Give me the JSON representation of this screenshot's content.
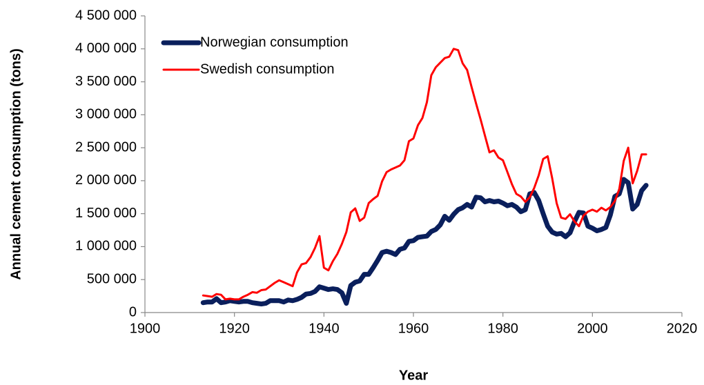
{
  "chart_data": {
    "type": "line",
    "x_label": "Year",
    "y_label": "Annual cement consumption (tons)",
    "legend": "top-left",
    "x": [
      1913,
      1914,
      1915,
      1916,
      1917,
      1918,
      1919,
      1920,
      1921,
      1922,
      1923,
      1924,
      1925,
      1926,
      1927,
      1928,
      1929,
      1930,
      1931,
      1932,
      1933,
      1934,
      1935,
      1936,
      1937,
      1938,
      1939,
      1940,
      1941,
      1942,
      1943,
      1944,
      1945,
      1946,
      1947,
      1948,
      1949,
      1950,
      1951,
      1952,
      1953,
      1954,
      1955,
      1956,
      1957,
      1958,
      1959,
      1960,
      1961,
      1962,
      1963,
      1964,
      1965,
      1966,
      1967,
      1968,
      1969,
      1970,
      1971,
      1972,
      1973,
      1974,
      1975,
      1976,
      1977,
      1978,
      1979,
      1980,
      1981,
      1982,
      1983,
      1984,
      1985,
      1986,
      1987,
      1988,
      1989,
      1990,
      1991,
      1992,
      1993,
      1994,
      1995,
      1996,
      1997,
      1998,
      1999,
      2000,
      2001,
      2002,
      2003,
      2004,
      2005,
      2006,
      2007,
      2008,
      2009,
      2010,
      2011,
      2012
    ],
    "series": [
      {
        "name": "Norwegian consumption",
        "color": "#0a1f5c",
        "values": [
          150000,
          160000,
          160000,
          210000,
          150000,
          160000,
          180000,
          170000,
          160000,
          170000,
          170000,
          150000,
          140000,
          130000,
          140000,
          180000,
          180000,
          180000,
          160000,
          190000,
          180000,
          200000,
          230000,
          280000,
          290000,
          320000,
          390000,
          370000,
          350000,
          360000,
          350000,
          300000,
          140000,
          410000,
          460000,
          480000,
          580000,
          580000,
          680000,
          790000,
          910000,
          930000,
          910000,
          880000,
          960000,
          980000,
          1080000,
          1090000,
          1140000,
          1150000,
          1160000,
          1230000,
          1260000,
          1330000,
          1460000,
          1400000,
          1490000,
          1560000,
          1590000,
          1640000,
          1600000,
          1750000,
          1740000,
          1680000,
          1700000,
          1680000,
          1690000,
          1660000,
          1620000,
          1640000,
          1600000,
          1530000,
          1560000,
          1800000,
          1820000,
          1700000,
          1500000,
          1310000,
          1220000,
          1190000,
          1200000,
          1150000,
          1210000,
          1380000,
          1520000,
          1510000,
          1310000,
          1280000,
          1240000,
          1260000,
          1290000,
          1480000,
          1760000,
          1800000,
          2020000,
          1970000,
          1570000,
          1640000,
          1850000,
          1930000
        ]
      },
      {
        "name": "Swedish consumption",
        "color": "#ff0000",
        "values": [
          260000,
          250000,
          240000,
          280000,
          270000,
          200000,
          210000,
          200000,
          200000,
          240000,
          270000,
          310000,
          300000,
          340000,
          350000,
          400000,
          450000,
          490000,
          460000,
          430000,
          400000,
          610000,
          730000,
          750000,
          840000,
          980000,
          1160000,
          680000,
          640000,
          780000,
          890000,
          1040000,
          1220000,
          1520000,
          1580000,
          1390000,
          1440000,
          1660000,
          1720000,
          1770000,
          1990000,
          2130000,
          2170000,
          2200000,
          2230000,
          2310000,
          2600000,
          2640000,
          2840000,
          2950000,
          3190000,
          3600000,
          3720000,
          3790000,
          3860000,
          3880000,
          4000000,
          3980000,
          3780000,
          3680000,
          3420000,
          3170000,
          2930000,
          2680000,
          2430000,
          2460000,
          2350000,
          2310000,
          2130000,
          1950000,
          1800000,
          1760000,
          1680000,
          1750000,
          1890000,
          2080000,
          2330000,
          2370000,
          2040000,
          1660000,
          1440000,
          1420000,
          1490000,
          1380000,
          1310000,
          1470000,
          1530000,
          1560000,
          1530000,
          1590000,
          1550000,
          1600000,
          1690000,
          1870000,
          2300000,
          2500000,
          1960000,
          2150000,
          2400000,
          2400000
        ]
      }
    ],
    "xlim": [
      1900,
      2020
    ],
    "xticks": [
      1900,
      1920,
      1940,
      1960,
      1980,
      2000,
      2020
    ],
    "ylim": [
      0,
      4500000
    ],
    "yticks": [
      0,
      {
        "value": 500000,
        "label": "500 000"
      },
      {
        "value": 1000000,
        "label": "1 000 000"
      },
      {
        "value": 1500000,
        "label": "1 500 000"
      },
      {
        "value": 2000000,
        "label": "2 000 000"
      },
      {
        "value": 2500000,
        "label": "2 500 000"
      },
      {
        "value": 3000000,
        "label": "3 000 000"
      },
      {
        "value": 3500000,
        "label": "3 500 000"
      },
      {
        "value": 4000000,
        "label": "4 000 000"
      },
      {
        "value": 4500000,
        "label": "4 500 000"
      }
    ],
    "grid": false
  }
}
